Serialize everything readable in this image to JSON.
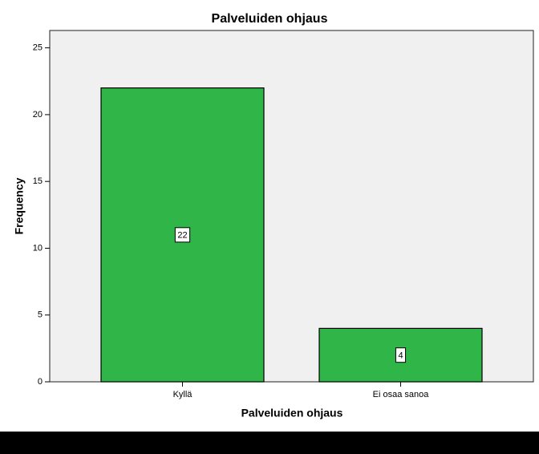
{
  "chart_data": {
    "type": "bar",
    "title": "Palveluiden ohjaus",
    "categories": [
      "Kyllä",
      "Ei osaa sanoa"
    ],
    "values": [
      22,
      4
    ],
    "color": "#2fb548",
    "x_label": "Palveluiden ohjaus",
    "y_label": "Frequency",
    "ylim": [
      0,
      26.3
    ],
    "yticks": [
      0,
      5,
      10,
      15,
      20,
      25
    ]
  }
}
